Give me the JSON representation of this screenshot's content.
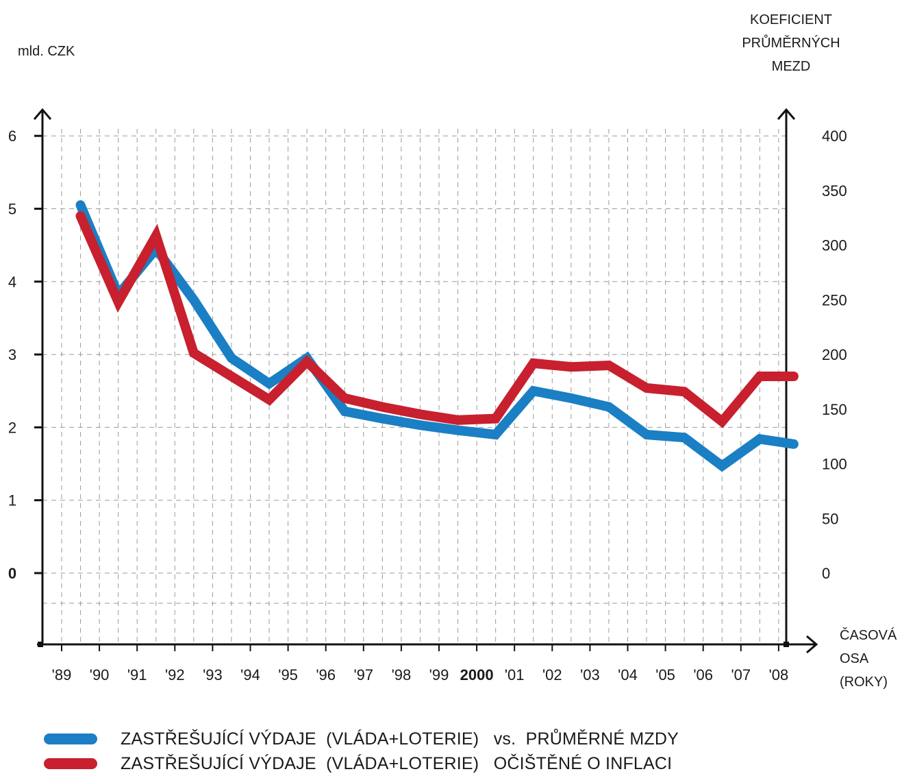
{
  "chart_data": {
    "type": "line",
    "x": [
      "'89",
      "'90",
      "'91",
      "'92",
      "'93",
      "'94",
      "'95",
      "'96",
      "'97",
      "'98",
      "'99",
      "2000",
      "'01",
      "'02",
      "'03",
      "'04",
      "'05",
      "'06",
      "'07",
      "'08"
    ],
    "xlabel": "ČASOVÁ OSA\n(ROKY)",
    "ylabel_left": "mld. CZK",
    "ylabel_right": "KOEFICIENT\nPRŮMĚRNÝCH\nMEZD",
    "ylim_left": [
      0,
      6
    ],
    "yticks_left": [
      "0",
      "1",
      "2",
      "3",
      "4",
      "5",
      "6"
    ],
    "ylim_right": [
      0,
      400
    ],
    "yticks_right": [
      "0",
      "50",
      "100",
      "150",
      "200",
      "250",
      "300",
      "350",
      "400"
    ],
    "grid": true,
    "legend_position": "bottom",
    "series": [
      {
        "name": "ZASTŘEŠUJÍCÍ VÝDAJE  (VLÁDA+LOTERIE)   vs.  PRŮMĚRNÉ MZDY",
        "color": "#1a7fc4",
        "points": [
          [
            1989.5,
            5.05
          ],
          [
            1990.5,
            3.82
          ],
          [
            1991.5,
            4.45
          ],
          [
            1992.5,
            3.75
          ],
          [
            1993.5,
            2.95
          ],
          [
            1994.5,
            2.6
          ],
          [
            1995.5,
            2.95
          ],
          [
            1996.5,
            2.22
          ],
          [
            1997.5,
            2.12
          ],
          [
            1998.5,
            2.03
          ],
          [
            1999.5,
            1.96
          ],
          [
            2000.5,
            1.9
          ],
          [
            2001.5,
            2.5
          ],
          [
            2002.5,
            2.4
          ],
          [
            2003.5,
            2.28
          ],
          [
            2004.5,
            1.9
          ],
          [
            2005.5,
            1.86
          ],
          [
            2006.5,
            1.47
          ],
          [
            2007.5,
            1.84
          ],
          [
            2008.4,
            1.77
          ]
        ]
      },
      {
        "name": "ZASTŘEŠUJÍCÍ VÝDAJE  (VLÁDA+LOTERIE)   OČIŠTĚNÉ O INFLACI",
        "color": "#c8202e",
        "points": [
          [
            1989.5,
            4.9
          ],
          [
            1990.5,
            3.72
          ],
          [
            1991.5,
            4.63
          ],
          [
            1992.5,
            3.02
          ],
          [
            1993.5,
            2.7
          ],
          [
            1994.5,
            2.38
          ],
          [
            1995.5,
            2.9
          ],
          [
            1996.5,
            2.4
          ],
          [
            1997.5,
            2.28
          ],
          [
            1998.5,
            2.18
          ],
          [
            1999.5,
            2.1
          ],
          [
            2000.5,
            2.12
          ],
          [
            2001.5,
            2.88
          ],
          [
            2002.5,
            2.83
          ],
          [
            2003.5,
            2.85
          ],
          [
            2004.5,
            2.54
          ],
          [
            2005.5,
            2.49
          ],
          [
            2006.5,
            2.08
          ],
          [
            2007.5,
            2.7
          ],
          [
            2008.4,
            2.7
          ]
        ]
      }
    ]
  }
}
